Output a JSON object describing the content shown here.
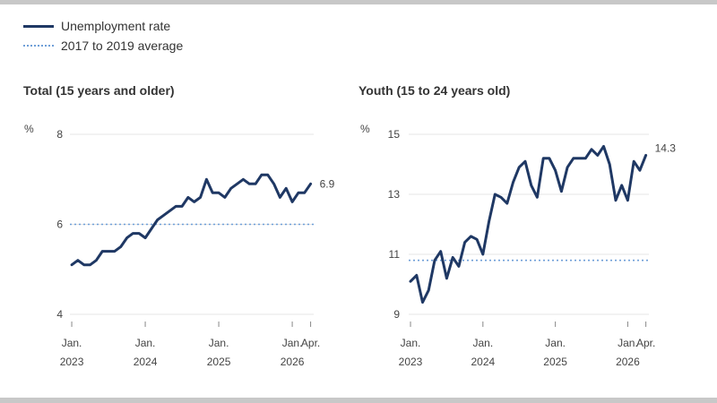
{
  "legend": {
    "series_label": "Unemployment rate",
    "average_label": "2017 to 2019 average"
  },
  "colors": {
    "series": "#1f3864",
    "average": "#6f9fd8"
  },
  "chart_data": [
    {
      "type": "line",
      "title": "Total (15 years and older)",
      "ylabel": "%",
      "ylim": [
        4,
        8
      ],
      "yticks": [
        4,
        6,
        8
      ],
      "xticks": [
        {
          "x": 0,
          "line1": "Jan.",
          "line2": "2023"
        },
        {
          "x": 12,
          "line1": "Jan.",
          "line2": "2024"
        },
        {
          "x": 24,
          "line1": "Jan.",
          "line2": "2025"
        },
        {
          "x": 36,
          "line1": "Jan.",
          "line2": "2026"
        },
        {
          "x": 39,
          "line1": "Apr.",
          "line2": ""
        }
      ],
      "xlim": [
        -0.3,
        39.5
      ],
      "average": 6.0,
      "end_label": "6.9",
      "series": [
        {
          "name": "Unemployment rate",
          "values": [
            5.1,
            5.2,
            5.1,
            5.1,
            5.2,
            5.4,
            5.4,
            5.4,
            5.5,
            5.7,
            5.8,
            5.8,
            5.7,
            5.9,
            6.1,
            6.2,
            6.3,
            6.4,
            6.4,
            6.6,
            6.5,
            6.6,
            7.0,
            6.7,
            6.7,
            6.6,
            6.8,
            6.9,
            7.0,
            6.9,
            6.9,
            7.1,
            7.1,
            6.9,
            6.6,
            6.8,
            6.5,
            6.7,
            6.7,
            6.9
          ]
        }
      ]
    },
    {
      "type": "line",
      "title": "Youth (15 to 24 years old)",
      "ylabel": "%",
      "ylim": [
        9,
        15
      ],
      "yticks": [
        9,
        11,
        13,
        15
      ],
      "xticks": [
        {
          "x": 0,
          "line1": "Jan.",
          "line2": "2023"
        },
        {
          "x": 12,
          "line1": "Jan.",
          "line2": "2024"
        },
        {
          "x": 24,
          "line1": "Jan.",
          "line2": "2025"
        },
        {
          "x": 36,
          "line1": "Jan.",
          "line2": "2026"
        },
        {
          "x": 39,
          "line1": "Apr.",
          "line2": ""
        }
      ],
      "xlim": [
        -0.3,
        39.5
      ],
      "average": 10.8,
      "end_label": "14.3",
      "series": [
        {
          "name": "Unemployment rate",
          "values": [
            10.1,
            10.3,
            9.4,
            9.8,
            10.8,
            11.1,
            10.2,
            10.9,
            10.6,
            11.4,
            11.6,
            11.5,
            11.0,
            12.1,
            13.0,
            12.9,
            12.7,
            13.4,
            13.9,
            14.1,
            13.3,
            12.9,
            14.2,
            14.2,
            13.8,
            13.1,
            13.9,
            14.2,
            14.2,
            14.2,
            14.5,
            14.3,
            14.6,
            14.0,
            12.8,
            13.3,
            12.8,
            14.1,
            13.8,
            14.3
          ]
        }
      ]
    }
  ]
}
